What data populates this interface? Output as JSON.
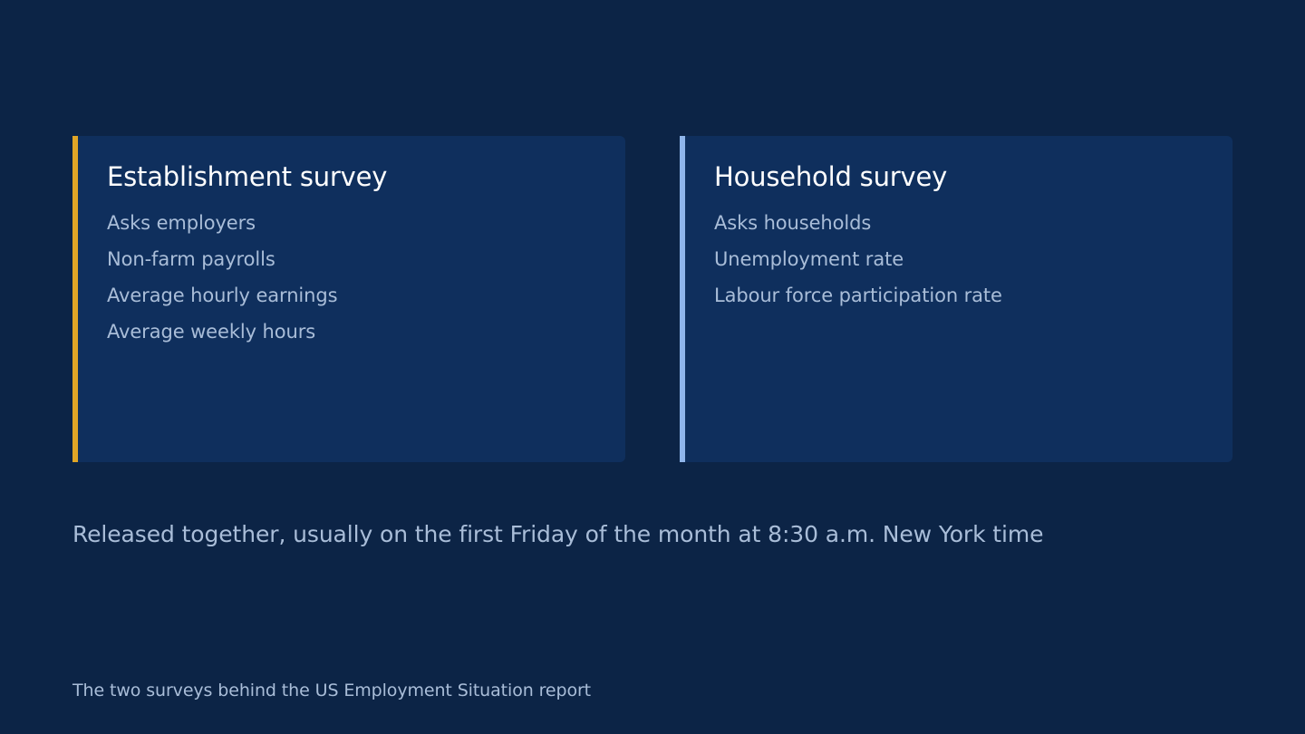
{
  "colors": {
    "background": "#0c2446",
    "card_background": "#0f2f5d",
    "establishment_accent": "#e0a526",
    "household_accent": "#8fb5ea",
    "muted_text": "#a9bdd8"
  },
  "cards": [
    {
      "title": "Establishment survey",
      "items": [
        "Asks employers",
        "Non-farm payrolls",
        "Average hourly earnings",
        "Average weekly hours"
      ]
    },
    {
      "title": "Household survey",
      "items": [
        "Asks households",
        "Unemployment rate",
        "Labour force participation rate"
      ]
    }
  ],
  "release_note": "Released together, usually on the first Friday of the month at 8:30 a.m. New York time",
  "caption": "The two surveys behind the US Employment Situation report"
}
